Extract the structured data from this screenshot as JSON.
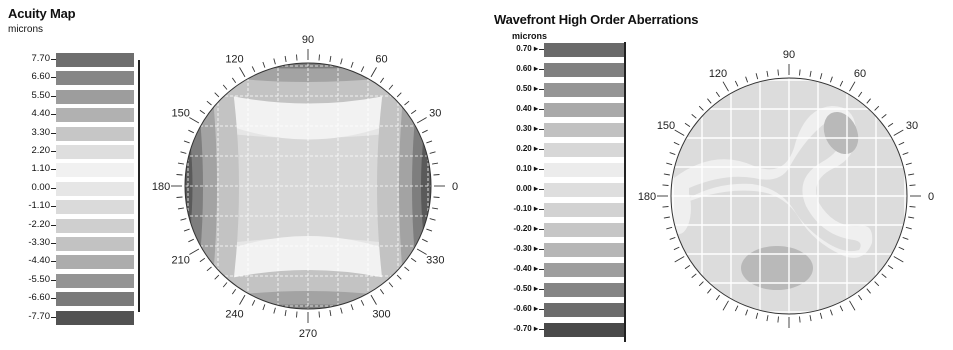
{
  "acuity_map": {
    "title": "Acuity Map",
    "unit": "microns",
    "scale": [
      {
        "label": "7.70",
        "color": "#6e6e6e"
      },
      {
        "label": "6.60",
        "color": "#868686"
      },
      {
        "label": "5.50",
        "color": "#9d9d9d"
      },
      {
        "label": "4.40",
        "color": "#b1b1b1"
      },
      {
        "label": "3.30",
        "color": "#c6c6c6"
      },
      {
        "label": "2.20",
        "color": "#dedede"
      },
      {
        "label": "1.10",
        "color": "#f1f1f1"
      },
      {
        "label": "0.00",
        "color": "#e6e6e6"
      },
      {
        "label": "-1.10",
        "color": "#dadada"
      },
      {
        "label": "-2.20",
        "color": "#cfcfcf"
      },
      {
        "label": "-3.30",
        "color": "#c2c2c2"
      },
      {
        "label": "-4.40",
        "color": "#acacac"
      },
      {
        "label": "-5.50",
        "color": "#949494"
      },
      {
        "label": "-6.60",
        "color": "#7a7a7a"
      },
      {
        "label": "-7.70",
        "color": "#525252"
      }
    ],
    "angle_labels": [
      "90",
      "60",
      "30",
      "0",
      "330",
      "300",
      "270",
      "240",
      "210",
      "180",
      "150",
      "120"
    ],
    "colors": {
      "fill_base": "#d8d8d8",
      "lightest": "#f2f2f2",
      "light": "#e6e6e6",
      "side_1": "#c3c3c3",
      "side_2": "#a3a3a3",
      "side_3": "#7e7e7e",
      "side_4": "#5a5a5a",
      "grid": "#ffffff",
      "outline": "#333333"
    }
  },
  "hoa_map": {
    "title": "Wavefront High Order Aberrations",
    "unit": "microns",
    "scale": [
      {
        "label": "0.70",
        "color": "#6a6a6a"
      },
      {
        "label": "0.60",
        "color": "#808080"
      },
      {
        "label": "0.50",
        "color": "#959595"
      },
      {
        "label": "0.40",
        "color": "#a9a9a9"
      },
      {
        "label": "0.30",
        "color": "#c1c1c1"
      },
      {
        "label": "0.20",
        "color": "#d7d7d7"
      },
      {
        "label": "0.10",
        "color": "#ececec"
      },
      {
        "label": "0.00",
        "color": "#dedede"
      },
      {
        "label": "-0.10",
        "color": "#d2d2d2"
      },
      {
        "label": "-0.20",
        "color": "#c6c6c6"
      },
      {
        "label": "-0.30",
        "color": "#b6b6b6"
      },
      {
        "label": "-0.40",
        "color": "#9e9e9e"
      },
      {
        "label": "-0.50",
        "color": "#858585"
      },
      {
        "label": "-0.60",
        "color": "#6c6c6c"
      },
      {
        "label": "-0.70",
        "color": "#4a4a4a"
      }
    ],
    "angle_labels": [
      "90",
      "60",
      "30",
      "0",
      "180",
      "150",
      "120"
    ],
    "colors": {
      "fill_base": "#dcdcdc",
      "band": "#efefef",
      "spot": "#b9b9b9",
      "edge_1": "#a6a6a6",
      "edge_2": "#6a6a6a",
      "grid": "#ffffff",
      "outline": "#333333"
    }
  }
}
